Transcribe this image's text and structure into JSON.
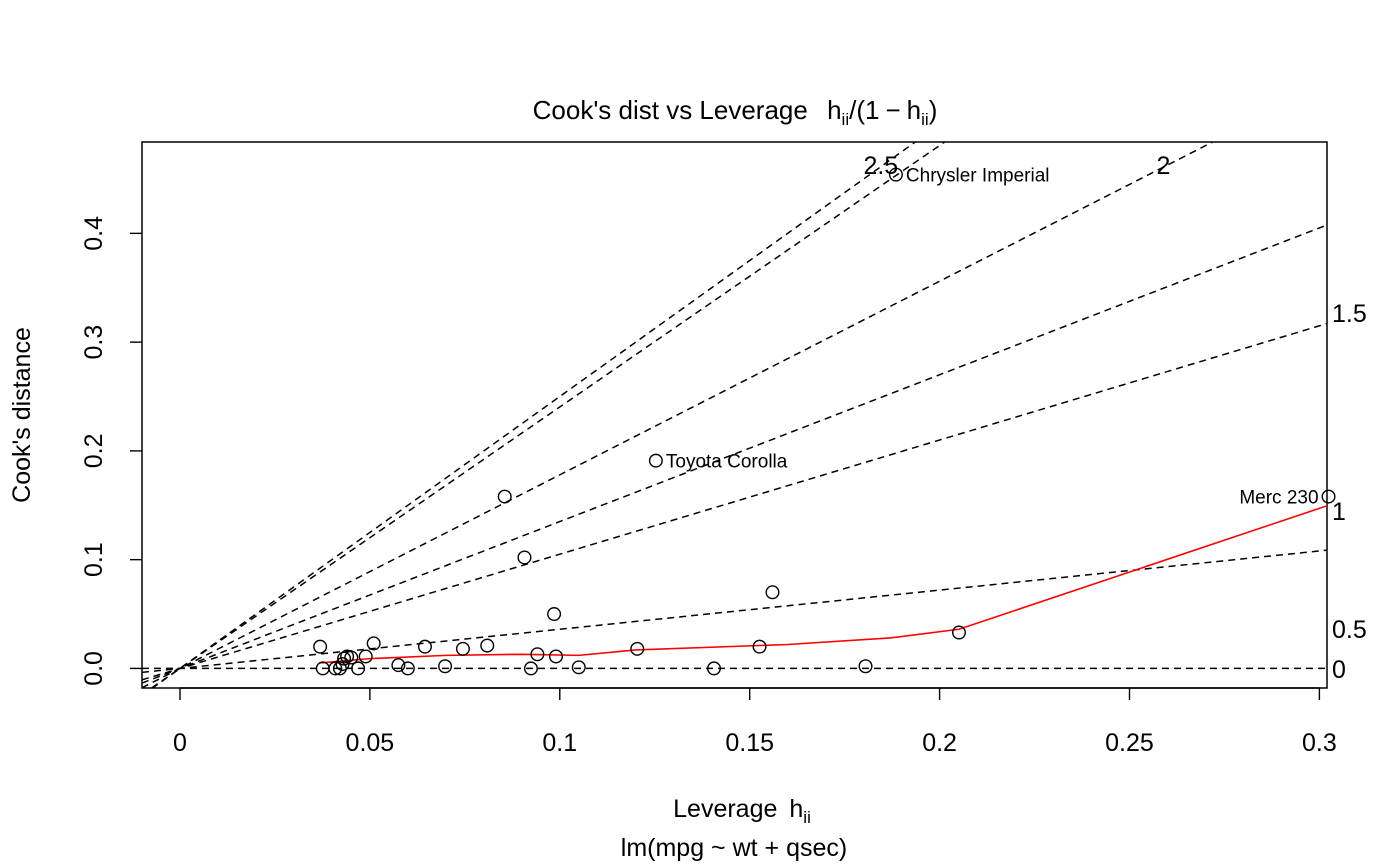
{
  "chart_data": {
    "type": "scatter",
    "title": {
      "prefix": "Cook's dist vs Leverage",
      "formula_h": "h",
      "formula_ii": "ii",
      "formula_open": "(1",
      "formula_minus": "−",
      "formula_close": ")"
    },
    "xlabel": {
      "text": "Leverage",
      "h": "h",
      "ii": "ii"
    },
    "ylabel": "Cook's distance",
    "subtitle": "lm(mpg ~ wt + qsec)",
    "xlim": [
      -0.01,
      0.302
    ],
    "ylim": [
      -0.018,
      0.484
    ],
    "x_ticks": [
      {
        "value": 0,
        "label": "0"
      },
      {
        "value": 0.05,
        "label": "0.05"
      },
      {
        "value": 0.1,
        "label": "0.1"
      },
      {
        "value": 0.15,
        "label": "0.15"
      },
      {
        "value": 0.2,
        "label": "0.2"
      },
      {
        "value": 0.25,
        "label": "0.25"
      },
      {
        "value": 0.3,
        "label": "0.3"
      }
    ],
    "y_ticks": [
      {
        "value": 0.0,
        "label": "0.0"
      },
      {
        "value": 0.1,
        "label": "0.1"
      },
      {
        "value": 0.2,
        "label": "0.2"
      },
      {
        "value": 0.3,
        "label": "0.3"
      },
      {
        "value": 0.4,
        "label": "0.4"
      }
    ],
    "points": [
      [
        0.0369,
        0.02
      ],
      [
        0.0376,
        0.0
      ],
      [
        0.0409,
        0.0
      ],
      [
        0.0421,
        0.0
      ],
      [
        0.0428,
        0.004
      ],
      [
        0.0432,
        0.009
      ],
      [
        0.044,
        0.011
      ],
      [
        0.0451,
        0.01
      ],
      [
        0.0469,
        0.0
      ],
      [
        0.0489,
        0.011
      ],
      [
        0.051,
        0.023
      ],
      [
        0.0575,
        0.003
      ],
      [
        0.06,
        0.0
      ],
      [
        0.0645,
        0.02
      ],
      [
        0.0698,
        0.002
      ],
      [
        0.0745,
        0.018
      ],
      [
        0.0809,
        0.021
      ],
      [
        0.0855,
        0.158
      ],
      [
        0.0924,
        0.0
      ],
      [
        0.0941,
        0.013
      ],
      [
        0.0985,
        0.05
      ],
      [
        0.099,
        0.011
      ],
      [
        0.0907,
        0.102
      ],
      [
        0.105,
        0.001
      ],
      [
        0.1204,
        0.018
      ],
      [
        0.1253,
        0.191
      ],
      [
        0.1406,
        0.0
      ],
      [
        0.1526,
        0.02
      ],
      [
        0.156,
        0.07
      ],
      [
        0.1805,
        0.002
      ],
      [
        0.1885,
        0.454
      ],
      [
        0.2051,
        0.033
      ],
      [
        0.3024,
        0.158
      ]
    ],
    "labeled_points": [
      {
        "name": "Chrysler Imperial",
        "x": 0.1885,
        "y": 0.454,
        "side": "right"
      },
      {
        "name": "Toyota Corolla",
        "x": 0.1253,
        "y": 0.191,
        "side": "right"
      },
      {
        "name": "Merc 230",
        "x": 0.3024,
        "y": 0.158,
        "side": "left"
      }
    ],
    "smoother": {
      "color": "#ff0000",
      "x": [
        0.0369,
        0.05,
        0.07,
        0.09,
        0.105,
        0.12,
        0.16,
        0.187,
        0.2051,
        0.3024
      ],
      "y": [
        0.005,
        0.009,
        0.012,
        0.013,
        0.012,
        0.017,
        0.022,
        0.028,
        0.036,
        0.15
      ]
    },
    "contours": [
      {
        "slope": 2.5,
        "label": "2.5"
      },
      {
        "slope": 2.404,
        "label": ""
      },
      {
        "slope": 1.78,
        "label": "2"
      },
      {
        "slope": 1.35,
        "label": ""
      },
      {
        "slope": 1.05,
        "label": ""
      },
      {
        "slope": 0.36,
        "label": ""
      },
      {
        "slope": 0.0,
        "label": ""
      }
    ],
    "right_axis_labels": [
      {
        "value": 1.5,
        "label": "1.5"
      },
      {
        "value": 1,
        "label": "1"
      },
      {
        "value": 0.5,
        "label": "0.5"
      },
      {
        "value": 0,
        "label": "0"
      }
    ],
    "grid": false,
    "legend": "none"
  }
}
